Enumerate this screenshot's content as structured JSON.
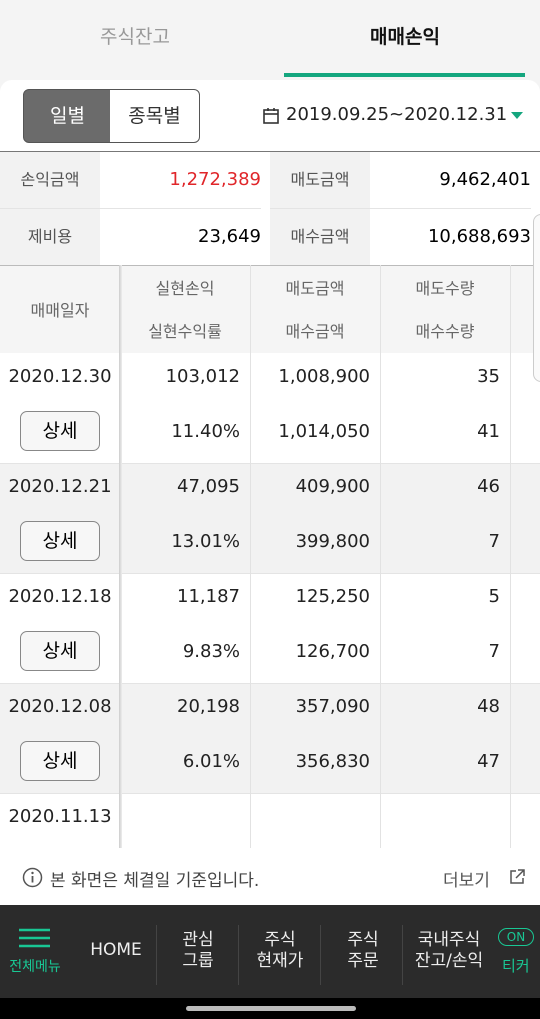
{
  "tabs": [
    "주식잔고",
    "매매손익"
  ],
  "toggle": [
    "일별",
    "종목별"
  ],
  "date_range": "2019.09.25~2020.12.31",
  "summary": [
    [
      "손익금액",
      "1,272,389",
      "매도금액",
      "9,462,401"
    ],
    [
      "제비용",
      "23,649",
      "매수금액",
      "10,688,693"
    ]
  ],
  "table": {
    "headers": [
      [
        "매매일자"
      ],
      [
        "실현손익",
        "실현수익률"
      ],
      [
        "매도금액",
        "매수금액"
      ],
      [
        "매도수량",
        "매수수량"
      ]
    ],
    "rows": [
      {
        "date": "2020.12.30",
        "button": "상세",
        "profit": "103,012",
        "rate": "11.40%",
        "sell_amount": "1,008,900",
        "buy_amount": "1,014,050",
        "sell_qty": "35",
        "buy_qty": "41"
      },
      {
        "date": "2020.12.21",
        "button": "상세",
        "profit": "47,095",
        "rate": "13.01%",
        "sell_amount": "409,900",
        "buy_amount": "399,800",
        "sell_qty": "46",
        "buy_qty": "7"
      },
      {
        "date": "2020.12.18",
        "button": "상세",
        "profit": "11,187",
        "rate": "9.83%",
        "sell_amount": "125,250",
        "buy_amount": "126,700",
        "sell_qty": "5",
        "buy_qty": "7"
      },
      {
        "date": "2020.12.08",
        "button": "상세",
        "profit": "20,198",
        "rate": "6.01%",
        "sell_amount": "357,090",
        "buy_amount": "356,830",
        "sell_qty": "48",
        "buy_qty": "47"
      },
      {
        "date": "2020.11.13"
      }
    ]
  },
  "footnote": "본 화면은 체결일 기준입니다.",
  "more": "더보기",
  "nav": [
    [
      "전체메뉴"
    ],
    [
      "HOME"
    ],
    [
      "관심",
      "그룹"
    ],
    [
      "주식",
      "현재가"
    ],
    [
      "주식",
      "주문"
    ],
    [
      "국내주식",
      "잔고/손익"
    ]
  ],
  "nav_badge": "ON",
  "nav_ticker": "티커"
}
